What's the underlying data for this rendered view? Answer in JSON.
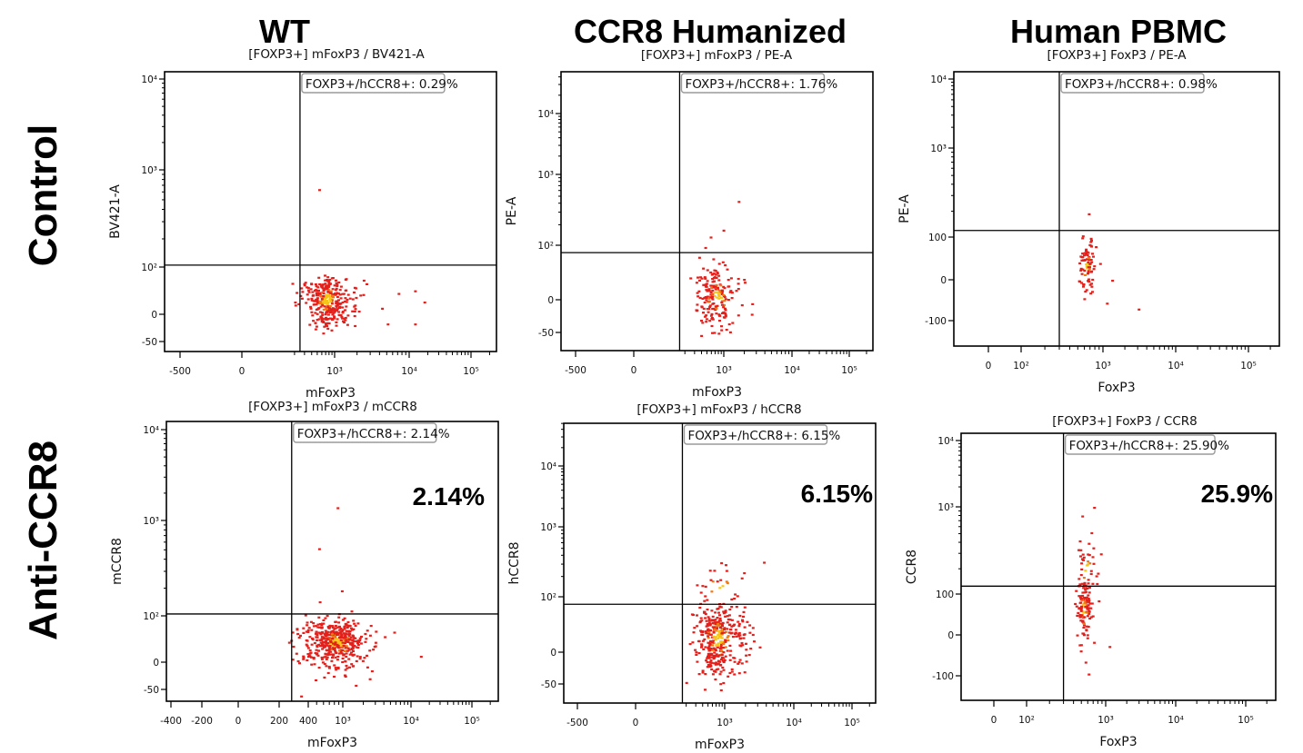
{
  "column_headers": [
    "WT",
    "CCR8 Humanized",
    "Human PBMC"
  ],
  "row_headers": [
    "Control",
    "Anti-CCR8"
  ],
  "colors": {
    "dot": "#e3201b",
    "dot_dense": "#f07a12",
    "dot_core": "#f5c518",
    "line": "#000000",
    "gate_border": "#9a9a9a"
  },
  "chart_data": [
    {
      "type": "scatter",
      "panel": "WT / Control",
      "title": "[FOXP3+] mFoxP3 / BV421-A",
      "xlabel": "mFoxP3",
      "ylabel": "BV421-A",
      "gate_label": "FOXP3+/hCCR8+: 0.29%",
      "big_label": null,
      "x_ticks": [
        {
          "v": -500,
          "label": "-500"
        },
        {
          "v": 0,
          "label": "0"
        },
        {
          "v": 1000,
          "label": "10³"
        },
        {
          "v": 10000,
          "label": "10⁴"
        },
        {
          "v": 100000,
          "label": "10⁵"
        }
      ],
      "y_ticks": [
        {
          "v": 10000,
          "label": "10⁴"
        },
        {
          "v": 1000,
          "label": "10³"
        },
        {
          "v": 100,
          "label": "10²"
        },
        {
          "v": 0,
          "label": "0"
        },
        {
          "v": -50,
          "label": "-50"
        }
      ],
      "gate": {
        "x": 250,
        "y": 105
      },
      "clusters": [
        {
          "x": 700,
          "y": 25,
          "fx": 1.55,
          "sy": 22,
          "n": 330
        }
      ],
      "outliers": [
        [
          520,
          640
        ],
        [
          12000,
          40
        ],
        [
          17000,
          20
        ],
        [
          12000,
          -15
        ],
        [
          5000,
          -15
        ],
        [
          7000,
          35
        ],
        [
          2600,
          55
        ],
        [
          4200,
          10
        ]
      ]
    },
    {
      "type": "scatter",
      "panel": "CCR8 Humanized / Control",
      "title": "[FOXP3+] mFoxP3 / PE-A",
      "xlabel": "mFoxP3",
      "ylabel": "PE-A",
      "gate_label": "FOXP3+/hCCR8+: 1.76%",
      "big_label": null,
      "x_ticks": [
        {
          "v": -500,
          "label": "-500"
        },
        {
          "v": 0,
          "label": "0"
        },
        {
          "v": 1000,
          "label": "10³"
        },
        {
          "v": 10000,
          "label": "10⁴"
        },
        {
          "v": 100000,
          "label": "10⁵"
        }
      ],
      "y_ticks": [
        {
          "v": 10000,
          "label": "10⁴"
        },
        {
          "v": 1000,
          "label": "10³"
        },
        {
          "v": 100,
          "label": "10²"
        },
        {
          "v": 0,
          "label": "0"
        },
        {
          "v": -50,
          "label": "-50"
        }
      ],
      "gate": {
        "x": 160,
        "y": 80
      },
      "clusters": [
        {
          "x": 720,
          "y": 5,
          "fx": 1.6,
          "sy": 22,
          "n": 190
        }
      ],
      "outliers": [
        [
          1600,
          430
        ],
        [
          950,
          170
        ],
        [
          560,
          135
        ],
        [
          450,
          95
        ],
        [
          350,
          70
        ],
        [
          380,
          -55
        ],
        [
          1200,
          -48
        ]
      ]
    },
    {
      "type": "scatter",
      "panel": "Human PBMC / Control",
      "title": "[FOXP3+] FoxP3 / PE-A",
      "xlabel": "FoxP3",
      "ylabel": "PE-A",
      "gate_label": "FOXP3+/hCCR8+: 0.98%",
      "big_label": null,
      "x_ticks": [
        {
          "v": 0,
          "label": "0"
        },
        {
          "v": 100,
          "label": "10²"
        },
        {
          "v": 1000,
          "label": "10³"
        },
        {
          "v": 10000,
          "label": "10⁴"
        },
        {
          "v": 100000,
          "label": "10⁵"
        }
      ],
      "y_ticks": [
        {
          "v": 10000,
          "label": "10⁴"
        },
        {
          "v": 1000,
          "label": "10³"
        },
        {
          "v": 100,
          "label": "100"
        },
        {
          "v": 0,
          "label": "0"
        },
        {
          "v": -100,
          "label": "-100"
        }
      ],
      "gate": {
        "x": 300,
        "y": 120
      },
      "clusters": [
        {
          "x": 620,
          "y": 25,
          "fx": 1.12,
          "sy": 25,
          "n": 80
        }
      ],
      "outliers": [
        [
          660,
          190
        ],
        [
          1300,
          0
        ],
        [
          1100,
          -45
        ],
        [
          3000,
          -60
        ],
        [
          800,
          70
        ],
        [
          900,
          30
        ],
        [
          560,
          105
        ]
      ]
    },
    {
      "type": "scatter",
      "panel": "WT / Anti-CCR8",
      "title": "[FOXP3+] mFoxP3 / mCCR8",
      "xlabel": "mFoxP3",
      "ylabel": "mCCR8",
      "gate_label": "FOXP3+/hCCR8+: 2.14%",
      "big_label": "2.14%",
      "x_ticks": [
        {
          "v": -400,
          "label": "-400"
        },
        {
          "v": -200,
          "label": "-200"
        },
        {
          "v": 0,
          "label": "0"
        },
        {
          "v": 200,
          "label": "200"
        },
        {
          "v": 400,
          "label": "400"
        },
        {
          "v": 1000,
          "label": "10³"
        },
        {
          "v": 10000,
          "label": "10⁴"
        },
        {
          "v": 100000,
          "label": "10⁵"
        }
      ],
      "y_ticks": [
        {
          "v": 10000,
          "label": "10⁴"
        },
        {
          "v": 1000,
          "label": "10³"
        },
        {
          "v": 100,
          "label": "10²"
        },
        {
          "v": 0,
          "label": "0"
        },
        {
          "v": -50,
          "label": "-50"
        }
      ],
      "gate": {
        "x": 270,
        "y": 105
      },
      "clusters": [
        {
          "x": 820,
          "y": 35,
          "fx": 1.55,
          "sy": 26,
          "n": 420
        },
        {
          "x": 850,
          "y": 40,
          "fx": 1.25,
          "sy": 12,
          "n": 60
        }
      ],
      "outliers": [
        [
          850,
          1400
        ],
        [
          520,
          520
        ],
        [
          950,
          190
        ],
        [
          530,
          145
        ],
        [
          1300,
          115
        ],
        [
          14000,
          10
        ],
        [
          5500,
          55
        ],
        [
          4000,
          45
        ],
        [
          1500,
          -40
        ],
        [
          330,
          -65
        ]
      ]
    },
    {
      "type": "scatter",
      "panel": "CCR8 Humanized / Anti-CCR8",
      "title": "[FOXP3+] mFoxP3 / hCCR8",
      "xlabel": "mFoxP3",
      "ylabel": "hCCR8",
      "gate_label": "FOXP3+/hCCR8+: 6.15%",
      "big_label": "6.15%",
      "x_ticks": [
        {
          "v": -500,
          "label": "-500"
        },
        {
          "v": 0,
          "label": "0"
        },
        {
          "v": 1000,
          "label": "10³"
        },
        {
          "v": 10000,
          "label": "10⁴"
        },
        {
          "v": 100000,
          "label": "10⁵"
        }
      ],
      "y_ticks": [
        {
          "v": 10000,
          "label": "10⁴"
        },
        {
          "v": 1000,
          "label": "10³"
        },
        {
          "v": 100,
          "label": "10²"
        },
        {
          "v": 0,
          "label": "0"
        },
        {
          "v": -50,
          "label": "-50"
        }
      ],
      "gate": {
        "x": 170,
        "y": 80
      },
      "clusters": [
        {
          "x": 720,
          "y": 20,
          "fx": 1.65,
          "sy": 28,
          "n": 360
        },
        {
          "x": 780,
          "y": 150,
          "fx": 1.7,
          "sy": 60,
          "n": 25
        }
      ],
      "outliers": [
        [
          830,
          320
        ],
        [
          1000,
          300
        ],
        [
          520,
          250
        ],
        [
          380,
          150
        ],
        [
          420,
          -60
        ]
      ]
    },
    {
      "type": "scatter",
      "panel": "Human PBMC / Anti-CCR8",
      "title": "[FOXP3+] FoxP3 / CCR8",
      "xlabel": "FoxP3",
      "ylabel": "CCR8",
      "gate_label": "FOXP3+/hCCR8+: 25.90%",
      "big_label": "25.9%",
      "x_ticks": [
        {
          "v": 0,
          "label": "0"
        },
        {
          "v": 100,
          "label": "10²"
        },
        {
          "v": 1000,
          "label": "10³"
        },
        {
          "v": 10000,
          "label": "10⁴"
        },
        {
          "v": 100000,
          "label": "10⁵"
        }
      ],
      "y_ticks": [
        {
          "v": 10000,
          "label": "10⁴"
        },
        {
          "v": 1000,
          "label": "10³"
        },
        {
          "v": 100,
          "label": "100"
        },
        {
          "v": 0,
          "label": "0"
        },
        {
          "v": -100,
          "label": "-100"
        }
      ],
      "gate": {
        "x": 300,
        "y": 125
      },
      "clusters": [
        {
          "x": 520,
          "y": 55,
          "fx": 1.12,
          "sy": 40,
          "n": 110
        },
        {
          "x": 560,
          "y": 220,
          "fx": 1.15,
          "sy": 90,
          "n": 40
        }
      ],
      "outliers": [
        [
          700,
          1000
        ],
        [
          500,
          800
        ],
        [
          1100,
          -20
        ],
        [
          650,
          520
        ],
        [
          850,
          300
        ],
        [
          780,
          180
        ]
      ]
    }
  ]
}
